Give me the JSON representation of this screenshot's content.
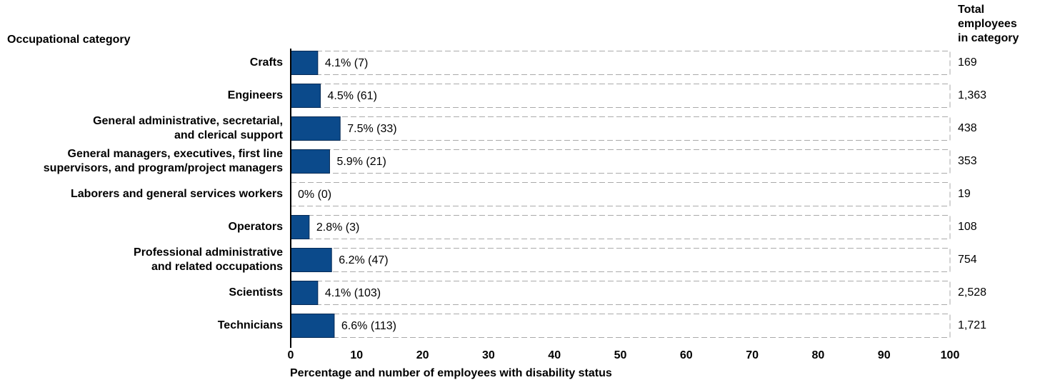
{
  "chart_data": {
    "type": "bar",
    "orientation": "horizontal",
    "category_axis_title": "Occupational category",
    "totals_title": "Total\nemployees\nin category",
    "xlabel": "Percentage and number of employees with disability status",
    "categories": [
      "Crafts",
      "Engineers",
      "General administrative, secretarial,\nand clerical support",
      "General managers, executives, first line\nsupervisors, and program/project managers",
      "Laborers and general services workers",
      "Operators",
      "Professional administrative\nand related occupations",
      "Scientists",
      "Technicians"
    ],
    "values": [
      4.1,
      4.5,
      7.5,
      5.9,
      0,
      2.8,
      6.2,
      4.1,
      6.6
    ],
    "value_labels": [
      "4.1% (7)",
      "4.5% (61)",
      "7.5% (33)",
      "5.9% (21)",
      "0% (0)",
      "2.8% (3)",
      "6.2% (47)",
      "4.1% (103)",
      "6.6% (113)"
    ],
    "totals": [
      169,
      {
        "value": 1363,
        "label": "1,363"
      },
      438,
      353,
      19,
      108,
      754,
      {
        "value": 2528,
        "label": "2,528"
      },
      {
        "value": 1721,
        "label": "1,721"
      }
    ],
    "color": "#0b4a8b",
    "xlim": [
      0,
      100
    ],
    "xticks": [
      0,
      10,
      20,
      30,
      40,
      50,
      60,
      70,
      80,
      90,
      100
    ]
  }
}
